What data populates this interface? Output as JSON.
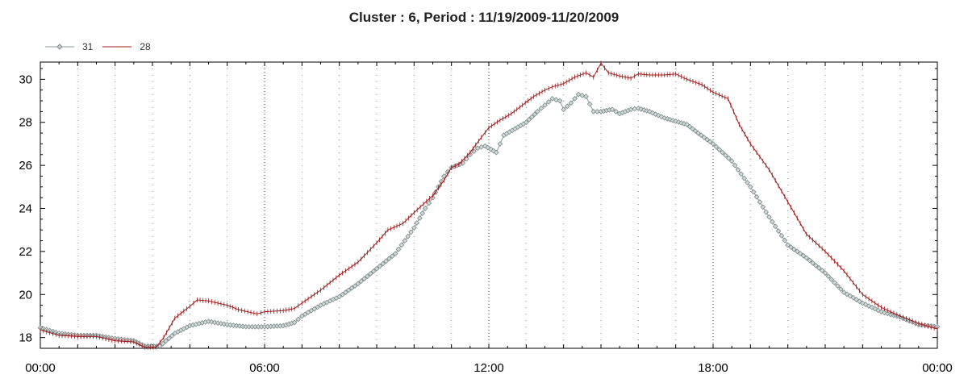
{
  "chart_data": {
    "type": "line",
    "title": "Cluster : 6, Period : 11/19/2009-11/20/2009",
    "xlabel": "",
    "ylabel": "",
    "x_unit": "hours from 00:00 on 11/19/2009",
    "xlim": [
      0,
      24
    ],
    "ylim": [
      17.5,
      30.8
    ],
    "x_ticks": [
      {
        "value": 0,
        "label": "00:00"
      },
      {
        "value": 6,
        "label": "06:00"
      },
      {
        "value": 12,
        "label": "12:00"
      },
      {
        "value": 18,
        "label": "18:00"
      },
      {
        "value": 24,
        "label": "00:00"
      }
    ],
    "y_ticks": [
      {
        "value": 18,
        "label": "18"
      },
      {
        "value": 20,
        "label": "20"
      },
      {
        "value": 22,
        "label": "22"
      },
      {
        "value": 24,
        "label": "24"
      },
      {
        "value": 26,
        "label": "26"
      },
      {
        "value": 28,
        "label": "28"
      },
      {
        "value": 30,
        "label": "30"
      }
    ],
    "grid": true,
    "legend_position": "top-left",
    "series": [
      {
        "name": "31",
        "color": "#8a9a9a",
        "marker": "diamond",
        "points": [
          [
            0,
            18.45
          ],
          [
            0.5,
            18.2
          ],
          [
            1,
            18.1
          ],
          [
            1.5,
            18.1
          ],
          [
            2,
            17.95
          ],
          [
            2.5,
            17.85
          ],
          [
            2.8,
            17.6
          ],
          [
            3.2,
            17.6
          ],
          [
            3.6,
            18.2
          ],
          [
            4,
            18.55
          ],
          [
            4.5,
            18.75
          ],
          [
            5,
            18.6
          ],
          [
            5.5,
            18.5
          ],
          [
            6,
            18.5
          ],
          [
            6.5,
            18.55
          ],
          [
            6.8,
            18.7
          ],
          [
            7,
            19
          ],
          [
            7.5,
            19.5
          ],
          [
            8,
            19.9
          ],
          [
            8.5,
            20.5
          ],
          [
            9,
            21.2
          ],
          [
            9.5,
            21.9
          ],
          [
            10,
            23.1
          ],
          [
            10.3,
            24
          ],
          [
            10.5,
            24.5
          ],
          [
            10.8,
            25.5
          ],
          [
            11,
            25.9
          ],
          [
            11.3,
            26.1
          ],
          [
            11.5,
            26.5
          ],
          [
            11.7,
            26.8
          ],
          [
            11.9,
            26.9
          ],
          [
            12.2,
            26.6
          ],
          [
            12.4,
            27.4
          ],
          [
            12.7,
            27.7
          ],
          [
            13,
            28
          ],
          [
            13.3,
            28.5
          ],
          [
            13.5,
            28.8
          ],
          [
            13.7,
            29.1
          ],
          [
            13.9,
            29
          ],
          [
            14,
            28.6
          ],
          [
            14.2,
            28.9
          ],
          [
            14.4,
            29.3
          ],
          [
            14.6,
            29.2
          ],
          [
            14.8,
            28.5
          ],
          [
            15,
            28.5
          ],
          [
            15.3,
            28.6
          ],
          [
            15.5,
            28.4
          ],
          [
            15.8,
            28.6
          ],
          [
            16,
            28.65
          ],
          [
            16.3,
            28.5
          ],
          [
            16.7,
            28.2
          ],
          [
            17,
            28.05
          ],
          [
            17.3,
            27.9
          ],
          [
            17.6,
            27.5
          ],
          [
            18,
            27
          ],
          [
            18.5,
            26.2
          ],
          [
            19,
            25
          ],
          [
            19.5,
            23.6
          ],
          [
            20,
            22.3
          ],
          [
            20.5,
            21.7
          ],
          [
            21,
            21
          ],
          [
            21.5,
            20.1
          ],
          [
            22,
            19.6
          ],
          [
            22.5,
            19.2
          ],
          [
            23,
            18.95
          ],
          [
            23.5,
            18.6
          ],
          [
            24,
            18.5
          ]
        ]
      },
      {
        "name": "28",
        "color": "#9b1b1b",
        "marker": "plus",
        "points": [
          [
            0,
            18.35
          ],
          [
            0.5,
            18.1
          ],
          [
            1,
            18.05
          ],
          [
            1.5,
            18.05
          ],
          [
            2,
            17.85
          ],
          [
            2.5,
            17.8
          ],
          [
            2.8,
            17.55
          ],
          [
            3.1,
            17.55
          ],
          [
            3.3,
            18
          ],
          [
            3.6,
            18.9
          ],
          [
            4,
            19.45
          ],
          [
            4.2,
            19.75
          ],
          [
            4.5,
            19.7
          ],
          [
            5,
            19.5
          ],
          [
            5.3,
            19.3
          ],
          [
            5.8,
            19.1
          ],
          [
            6,
            19.2
          ],
          [
            6.5,
            19.25
          ],
          [
            6.8,
            19.35
          ],
          [
            7,
            19.6
          ],
          [
            7.5,
            20.2
          ],
          [
            8,
            20.9
          ],
          [
            8.5,
            21.5
          ],
          [
            9,
            22.4
          ],
          [
            9.3,
            23
          ],
          [
            9.7,
            23.3
          ],
          [
            10,
            23.8
          ],
          [
            10.5,
            24.6
          ],
          [
            10.8,
            25.3
          ],
          [
            11,
            25.9
          ],
          [
            11.2,
            26.05
          ],
          [
            11.5,
            26.6
          ],
          [
            11.8,
            27.3
          ],
          [
            12,
            27.75
          ],
          [
            12.3,
            28.1
          ],
          [
            12.6,
            28.4
          ],
          [
            12.9,
            28.8
          ],
          [
            13.2,
            29.2
          ],
          [
            13.5,
            29.5
          ],
          [
            13.7,
            29.65
          ],
          [
            14,
            29.8
          ],
          [
            14.3,
            30.1
          ],
          [
            14.6,
            30.3
          ],
          [
            14.8,
            30.1
          ],
          [
            15,
            30.75
          ],
          [
            15.2,
            30.3
          ],
          [
            15.5,
            30.15
          ],
          [
            15.8,
            30.05
          ],
          [
            16,
            30.25
          ],
          [
            16.3,
            30.2
          ],
          [
            16.7,
            30.2
          ],
          [
            17,
            30.25
          ],
          [
            17.3,
            30
          ],
          [
            17.7,
            29.75
          ],
          [
            18,
            29.4
          ],
          [
            18.4,
            29.1
          ],
          [
            18.7,
            27.9
          ],
          [
            19,
            27
          ],
          [
            19.5,
            25.8
          ],
          [
            20,
            24.3
          ],
          [
            20.5,
            22.8
          ],
          [
            21,
            22
          ],
          [
            21.5,
            21.1
          ],
          [
            22,
            20
          ],
          [
            22.5,
            19.4
          ],
          [
            23,
            19
          ],
          [
            23.5,
            18.65
          ],
          [
            24,
            18.4
          ]
        ]
      }
    ]
  }
}
